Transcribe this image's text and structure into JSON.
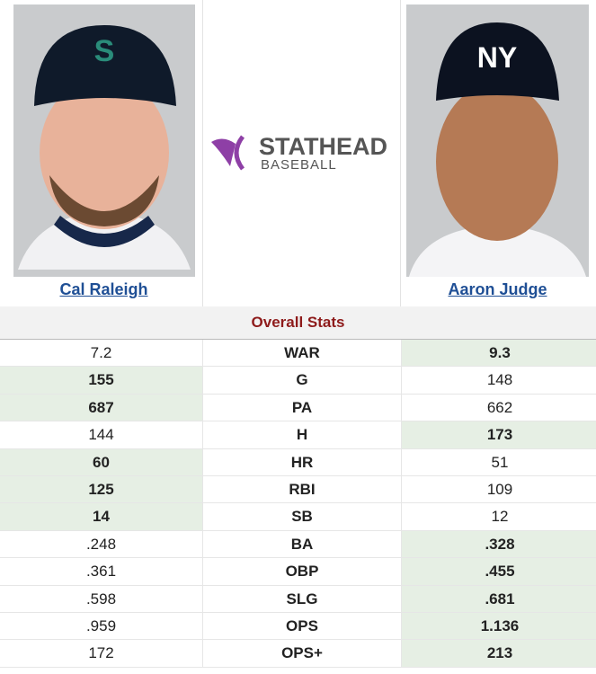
{
  "players": [
    {
      "name": "Cal Raleigh"
    },
    {
      "name": "Aaron Judge"
    }
  ],
  "logo": {
    "title": "STATHEAD",
    "subtitle": "BASEBALL"
  },
  "table": {
    "title": "Overall Stats",
    "rows": [
      {
        "left": "7.2",
        "stat": "WAR",
        "right": "9.3",
        "highlight": "right"
      },
      {
        "left": "155",
        "stat": "G",
        "right": "148",
        "highlight": "left"
      },
      {
        "left": "687",
        "stat": "PA",
        "right": "662",
        "highlight": "left"
      },
      {
        "left": "144",
        "stat": "H",
        "right": "173",
        "highlight": "right"
      },
      {
        "left": "60",
        "stat": "HR",
        "right": "51",
        "highlight": "left"
      },
      {
        "left": "125",
        "stat": "RBI",
        "right": "109",
        "highlight": "left"
      },
      {
        "left": "14",
        "stat": "SB",
        "right": "12",
        "highlight": "left"
      },
      {
        "left": ".248",
        "stat": "BA",
        "right": ".328",
        "highlight": "right"
      },
      {
        "left": ".361",
        "stat": "OBP",
        "right": ".455",
        "highlight": "right"
      },
      {
        "left": ".598",
        "stat": "SLG",
        "right": ".681",
        "highlight": "right"
      },
      {
        "left": ".959",
        "stat": "OPS",
        "right": "1.136",
        "highlight": "right"
      },
      {
        "left": "172",
        "stat": "OPS+",
        "right": "213",
        "highlight": "right"
      }
    ]
  }
}
